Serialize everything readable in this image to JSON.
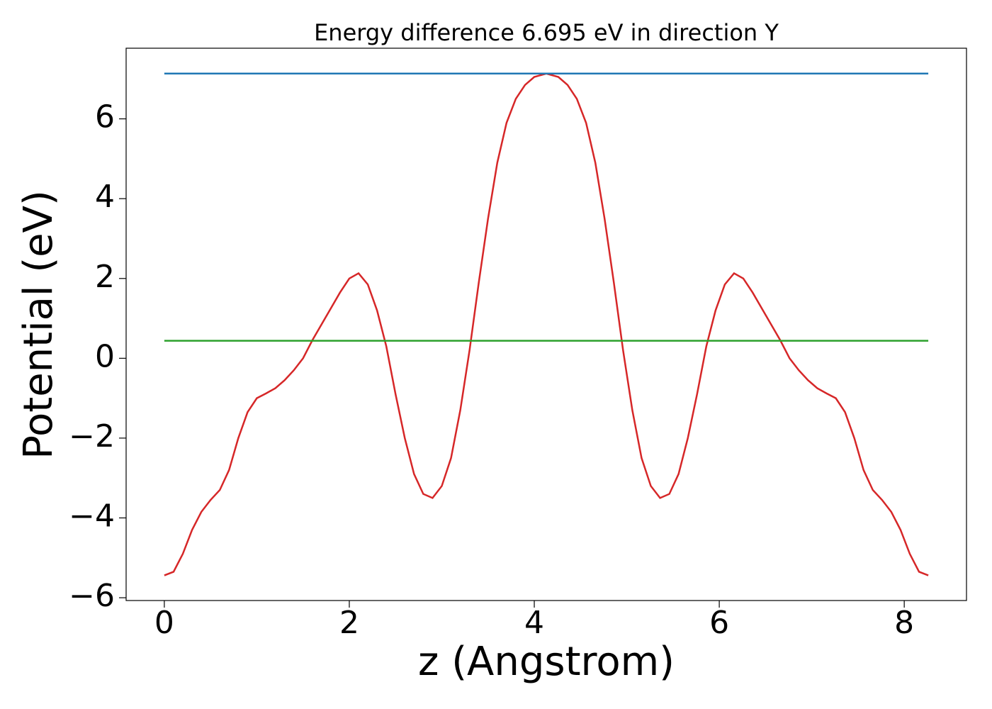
{
  "chart_data": {
    "type": "line",
    "title": "Energy difference 6.695 eV in direction Y",
    "xlabel": "z (Angstrom)",
    "ylabel": "Potential (eV)",
    "xlim": [
      -0.413,
      8.673
    ],
    "ylim": [
      -6.07,
      7.77
    ],
    "xticks": [
      0,
      2,
      4,
      6,
      8
    ],
    "yticks": [
      {
        "value": -6,
        "label": "−6"
      },
      {
        "value": -4,
        "label": "−4"
      },
      {
        "value": -2,
        "label": "−2"
      },
      0,
      2,
      4,
      6
    ],
    "grid": false,
    "series": [
      {
        "color": "#d62728",
        "x": [
          0,
          0.1,
          0.2,
          0.3,
          0.4,
          0.5,
          0.6,
          0.7,
          0.8,
          0.9,
          1.0,
          1.1,
          1.2,
          1.3,
          1.4,
          1.5,
          1.6,
          1.7,
          1.8,
          1.9,
          2.0,
          2.1,
          2.2,
          2.3,
          2.4,
          2.5,
          2.6,
          2.7,
          2.8,
          2.9,
          3.0,
          3.1,
          3.2,
          3.3,
          3.4,
          3.5,
          3.6,
          3.7,
          3.8,
          3.9,
          4.0,
          4.13,
          4.26,
          4.36,
          4.46,
          4.56,
          4.66,
          4.76,
          4.86,
          4.96,
          5.06,
          5.16,
          5.26,
          5.36,
          5.46,
          5.56,
          5.66,
          5.76,
          5.86,
          5.96,
          6.06,
          6.16,
          6.26,
          6.36,
          6.46,
          6.56,
          6.66,
          6.76,
          6.86,
          6.96,
          7.06,
          7.16,
          7.26,
          7.36,
          7.46,
          7.56,
          7.66,
          7.76,
          7.86,
          7.96,
          8.06,
          8.16,
          8.26
        ],
        "values": [
          -5.44,
          -5.35,
          -4.9,
          -4.3,
          -3.85,
          -3.55,
          -3.3,
          -2.8,
          -2.0,
          -1.35,
          -1.0,
          -0.88,
          -0.75,
          -0.55,
          -0.3,
          0.0,
          0.45,
          0.85,
          1.25,
          1.65,
          2.0,
          2.13,
          1.85,
          1.2,
          0.3,
          -0.9,
          -2.0,
          -2.9,
          -3.4,
          -3.5,
          -3.2,
          -2.5,
          -1.3,
          0.2,
          1.9,
          3.5,
          4.9,
          5.9,
          6.5,
          6.85,
          7.05,
          7.135,
          7.05,
          6.85,
          6.5,
          5.9,
          4.9,
          3.5,
          1.9,
          0.2,
          -1.3,
          -2.5,
          -3.2,
          -3.5,
          -3.4,
          -2.9,
          -2.0,
          -0.9,
          0.3,
          1.2,
          1.85,
          2.13,
          2.0,
          1.65,
          1.25,
          0.85,
          0.45,
          0.0,
          -0.3,
          -0.55,
          -0.75,
          -0.88,
          -1.0,
          -1.35,
          -2.0,
          -2.8,
          -3.3,
          -3.55,
          -3.85,
          -4.3,
          -4.9,
          -5.35,
          -5.44
        ]
      },
      {
        "color": "#1f77b4",
        "x": [
          0,
          8.26
        ],
        "values": [
          7.135,
          7.135
        ]
      },
      {
        "color": "#2ca02c",
        "x": [
          0,
          8.26
        ],
        "values": [
          0.44,
          0.44
        ]
      }
    ]
  }
}
